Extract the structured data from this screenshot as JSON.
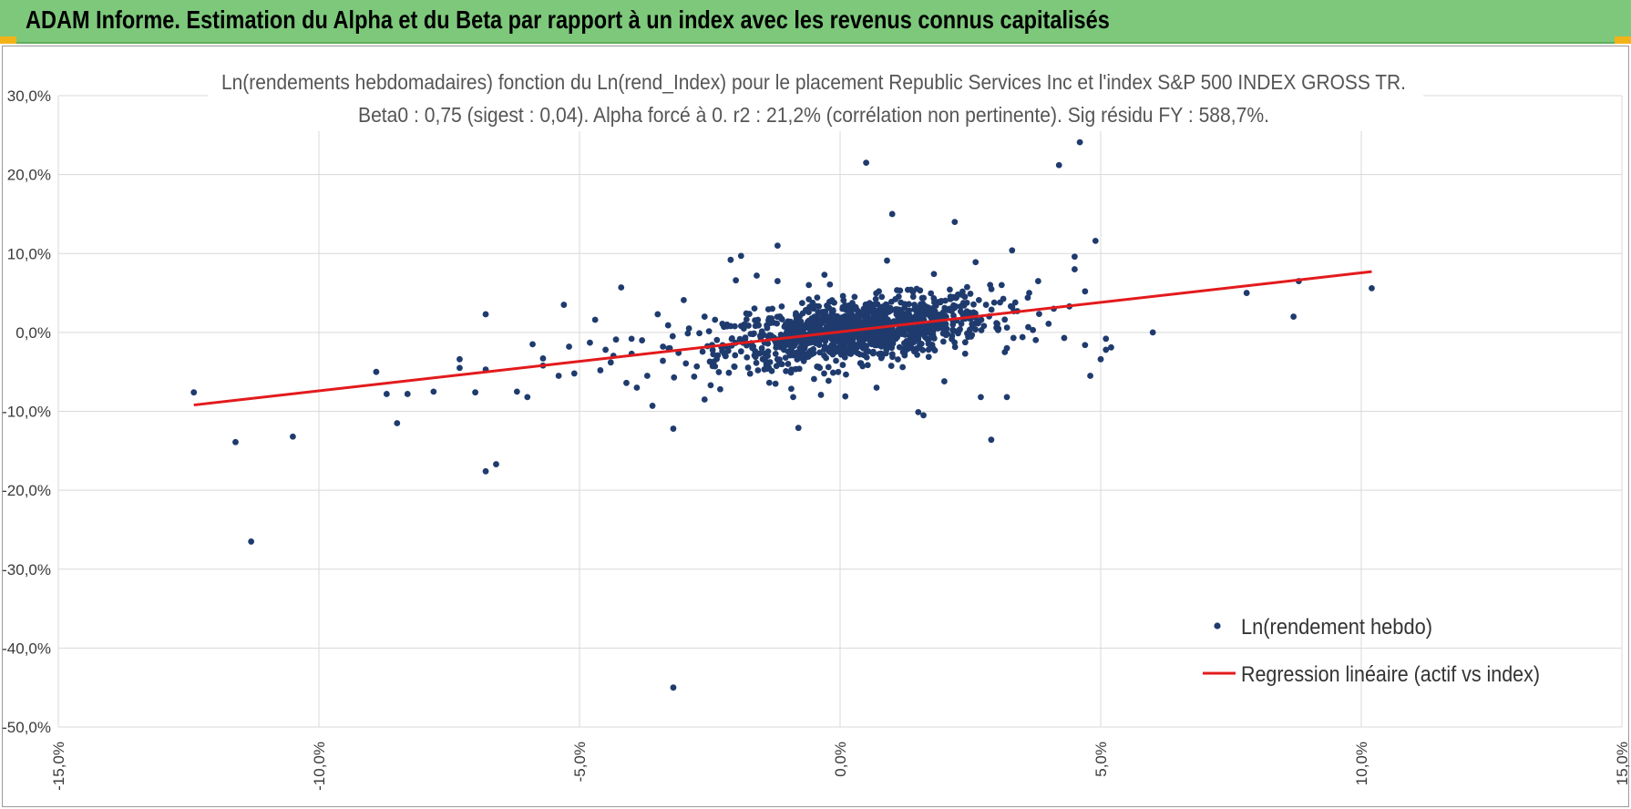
{
  "header": {
    "title": "ADAM Informe. Estimation du Alpha et du Beta par rapport à un index avec les revenus connus capitalisés"
  },
  "colors": {
    "header_bg": "#7dc87b",
    "accent": "#f2b318",
    "points": "#1f3b6e",
    "regression": "#e31a1c",
    "grid": "#d9d9d9"
  },
  "chart_data": {
    "type": "scatter",
    "title_line1": "Ln(rendements hebdomadaires) fonction du Ln(rend_Index) pour le placement Republic Services Inc et l'index S&P 500 INDEX GROSS TR.",
    "title_line2": "Beta0 : 0,75 (sigest : 0,04).  Alpha forcé à 0. r2 : 21,2% (corrélation non pertinente). Sig résidu FY : 588,7%.",
    "xlim": [
      -15,
      15
    ],
    "ylim": [
      -50,
      30
    ],
    "x_ticks": [
      -15,
      -10,
      -5,
      0,
      5,
      10,
      15
    ],
    "x_tick_labels": [
      "-15,0%",
      "-10,0%",
      "-5,0%",
      "0,0%",
      "5,0%",
      "10,0%",
      "15,0%"
    ],
    "y_ticks": [
      30,
      20,
      10,
      0,
      -10,
      -20,
      -30,
      -40,
      -50
    ],
    "y_tick_labels": [
      "30,0%",
      "20,0%",
      "10,0%",
      "0,0%",
      "-10,0%",
      "-20,0%",
      "-30,0%",
      "-40,0%",
      "-50,0%"
    ],
    "grid": true,
    "legend_position": "bottom-right",
    "series": [
      {
        "name": "Ln(rendement hebdo)",
        "kind": "scatter",
        "points": [
          [
            -12.4,
            -7.6
          ],
          [
            -11.6,
            -13.9
          ],
          [
            -11.3,
            -26.5
          ],
          [
            -10.5,
            -13.2
          ],
          [
            -8.9,
            -5.0
          ],
          [
            -8.7,
            -7.8
          ],
          [
            -8.5,
            -11.5
          ],
          [
            -8.3,
            -7.8
          ],
          [
            -7.8,
            -7.5
          ],
          [
            -7.3,
            -4.5
          ],
          [
            -7.3,
            -3.4
          ],
          [
            -7.0,
            -7.6
          ],
          [
            -6.8,
            2.3
          ],
          [
            -6.8,
            -17.6
          ],
          [
            -6.6,
            -16.7
          ],
          [
            -6.8,
            -4.7
          ],
          [
            -6.2,
            -7.5
          ],
          [
            -6.0,
            -8.2
          ],
          [
            -5.9,
            -1.5
          ],
          [
            -5.7,
            -3.3
          ],
          [
            -5.7,
            -4.2
          ],
          [
            -5.4,
            -5.5
          ],
          [
            -5.3,
            3.5
          ],
          [
            -5.2,
            -1.8
          ],
          [
            -5.1,
            -5.2
          ],
          [
            -4.8,
            -1.3
          ],
          [
            -4.7,
            1.6
          ],
          [
            -4.5,
            -2.2
          ],
          [
            -4.4,
            -3.8
          ],
          [
            -4.3,
            -0.9
          ],
          [
            -4.2,
            5.7
          ],
          [
            -4.1,
            -6.4
          ],
          [
            -4.0,
            -2.7
          ],
          [
            -3.9,
            -7.0
          ],
          [
            -3.8,
            -1.0
          ],
          [
            -3.6,
            -9.3
          ],
          [
            -3.5,
            2.3
          ],
          [
            -3.4,
            -3.6
          ],
          [
            -3.3,
            0.9
          ],
          [
            -3.2,
            -12.2
          ],
          [
            -3.1,
            -2.6
          ],
          [
            -3.0,
            4.1
          ],
          [
            -2.9,
            0.5
          ],
          [
            -2.8,
            -5.6
          ],
          [
            -2.7,
            -0.1
          ],
          [
            -2.6,
            2.0
          ],
          [
            -2.5,
            -3.7
          ],
          [
            -2.4,
            1.6
          ],
          [
            -2.3,
            -7.2
          ],
          [
            -2.2,
            -3.0
          ],
          [
            -2.1,
            0.8
          ],
          [
            -2.0,
            6.6
          ],
          [
            -1.9,
            -2.4
          ],
          [
            -1.8,
            2.4
          ],
          [
            -1.7,
            -1.4
          ],
          [
            -1.6,
            7.2
          ],
          [
            -1.5,
            0.0
          ],
          [
            -1.4,
            -4.6
          ],
          [
            -1.3,
            3.0
          ],
          [
            -1.2,
            6.5
          ],
          [
            -1.1,
            -1.2
          ],
          [
            -1.0,
            1.4
          ],
          [
            -0.9,
            -2.9
          ],
          [
            -0.8,
            -12.1
          ],
          [
            -0.7,
            -0.8
          ],
          [
            -0.6,
            4.2
          ],
          [
            -0.5,
            -5.9
          ],
          [
            -0.4,
            -1.2
          ],
          [
            -0.3,
            7.3
          ],
          [
            -0.2,
            0.2
          ],
          [
            -0.1,
            -1.9
          ],
          [
            0.0,
            1.1
          ],
          [
            0.1,
            -8.1
          ],
          [
            0.2,
            -0.6
          ],
          [
            0.3,
            3.2
          ],
          [
            0.4,
            -3.9
          ],
          [
            0.5,
            21.5
          ],
          [
            0.6,
            0.7
          ],
          [
            0.7,
            -7.0
          ],
          [
            0.8,
            4.5
          ],
          [
            0.9,
            -1.7
          ],
          [
            1.0,
            15.0
          ],
          [
            1.1,
            1.3
          ],
          [
            1.2,
            -4.4
          ],
          [
            1.3,
            5.4
          ],
          [
            1.4,
            0.6
          ],
          [
            1.5,
            -10.1
          ],
          [
            1.6,
            2.1
          ],
          [
            1.7,
            -3.1
          ],
          [
            1.8,
            7.4
          ],
          [
            1.9,
            1.0
          ],
          [
            2.0,
            -6.2
          ],
          [
            2.1,
            3.0
          ],
          [
            2.2,
            14.0
          ],
          [
            2.3,
            0.4
          ],
          [
            2.4,
            -2.7
          ],
          [
            2.5,
            4.9
          ],
          [
            2.6,
            1.9
          ],
          [
            2.7,
            -8.2
          ],
          [
            2.8,
            3.5
          ],
          [
            2.9,
            -13.6
          ],
          [
            3.0,
            0.6
          ],
          [
            3.1,
            6.0
          ],
          [
            3.2,
            -2.0
          ],
          [
            3.3,
            10.4
          ],
          [
            3.4,
            2.7
          ],
          [
            3.5,
            -0.6
          ],
          [
            3.6,
            4.4
          ],
          [
            3.7,
            0.3
          ],
          [
            3.8,
            6.5
          ],
          [
            4.0,
            1.1
          ],
          [
            4.1,
            3.0
          ],
          [
            4.2,
            21.2
          ],
          [
            4.3,
            -0.7
          ],
          [
            4.4,
            3.3
          ],
          [
            4.5,
            8.0
          ],
          [
            4.6,
            24.1
          ],
          [
            4.7,
            5.2
          ],
          [
            4.8,
            -5.5
          ],
          [
            4.9,
            11.6
          ],
          [
            5.0,
            -3.4
          ],
          [
            5.1,
            -0.8
          ],
          [
            5.2,
            -1.9
          ],
          [
            6.0,
            0.0
          ],
          [
            7.8,
            5.0
          ],
          [
            8.7,
            2.0
          ],
          [
            8.8,
            6.5
          ],
          [
            10.2,
            5.6
          ],
          [
            -3.2,
            -45.0
          ],
          [
            -1.9,
            9.7
          ],
          [
            -2.1,
            9.2
          ],
          [
            -1.2,
            11.0
          ],
          [
            -0.6,
            6.0
          ],
          [
            0.9,
            9.1
          ],
          [
            2.6,
            8.9
          ],
          [
            4.5,
            9.6
          ],
          [
            4.7,
            -1.6
          ],
          [
            5.1,
            -2.2
          ],
          [
            3.2,
            -8.2
          ],
          [
            1.6,
            -10.5
          ],
          [
            -0.9,
            -8.2
          ],
          [
            -2.4,
            -4.3
          ],
          [
            -4.6,
            -4.8
          ],
          [
            -3.7,
            -5.5
          ],
          [
            -2.6,
            -8.5
          ]
        ]
      },
      {
        "name": "Regression linéaire (actif vs index)",
        "kind": "line",
        "points": [
          [
            -12.4,
            -9.2
          ],
          [
            10.2,
            7.7
          ]
        ]
      }
    ]
  }
}
